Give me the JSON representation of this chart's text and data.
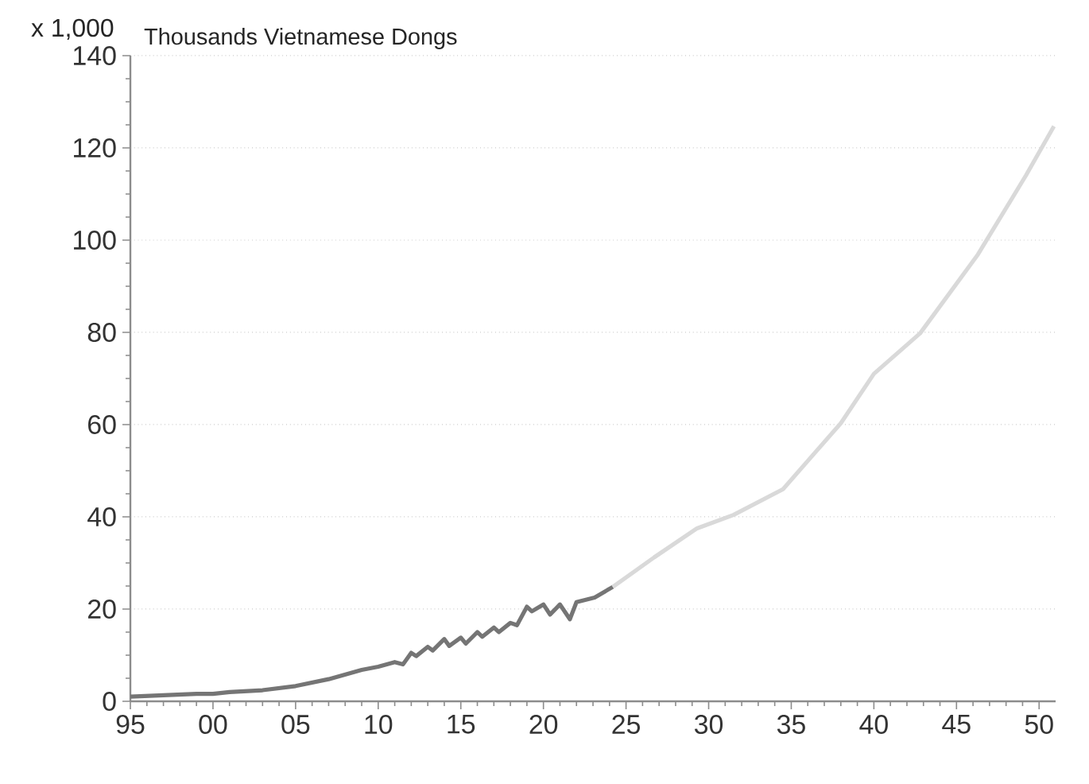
{
  "chart_data": {
    "type": "line",
    "ylabel": "Thousands Vietnamese Dongs",
    "annotations": [
      "x 1,000"
    ],
    "series": [
      {
        "color": "#757575",
        "x": [
          1995,
          1997,
          1999,
          2000,
          2001,
          2003,
          2005,
          2007,
          2009,
          2010,
          2011,
          2011.5,
          2012,
          2012.3,
          2013,
          2013.3,
          2014,
          2014.3,
          2015,
          2015.3,
          2016,
          2016.3,
          2017,
          2017.3,
          2018,
          2018.4,
          2019,
          2019.3,
          2020,
          2020.4,
          2021,
          2021.6,
          2022,
          2023.1,
          2024.2
        ],
        "values": [
          1.0,
          1.3,
          1.6,
          1.6,
          2.0,
          2.4,
          3.3,
          4.8,
          6.8,
          7.5,
          8.5,
          8.0,
          10.5,
          9.8,
          11.8,
          11.0,
          13.5,
          12.0,
          13.8,
          12.5,
          15.0,
          14.0,
          16.0,
          15.0,
          17.0,
          16.5,
          20.5,
          19.5,
          21.0,
          18.8,
          21.0,
          17.8,
          21.5,
          22.5,
          24.8
        ]
      },
      {
        "color": "#d9d9d9",
        "x": [
          2024.2,
          2026.7,
          2029.3,
          2031.5,
          2034.5,
          2038.0,
          2040.0,
          2042.8,
          2046.3,
          2049.2,
          2050.9
        ],
        "values": [
          24.8,
          31.2,
          37.5,
          40.4,
          46.0,
          60.3,
          71.0,
          79.8,
          96.9,
          114.0,
          124.7
        ]
      }
    ],
    "xlim": [
      1995,
      2051
    ],
    "xticks": [
      {
        "value": 1995,
        "label": "95"
      },
      {
        "value": 2000,
        "label": "00"
      },
      {
        "value": 2005,
        "label": "05"
      },
      {
        "value": 2010,
        "label": "10"
      },
      {
        "value": 2015,
        "label": "15"
      },
      {
        "value": 2020,
        "label": "20"
      },
      {
        "value": 2025,
        "label": "25"
      },
      {
        "value": 2030,
        "label": "30"
      },
      {
        "value": 2035,
        "label": "35"
      },
      {
        "value": 2040,
        "label": "40"
      },
      {
        "value": 2045,
        "label": "45"
      },
      {
        "value": 2050,
        "label": "50"
      }
    ],
    "ylim": [
      0,
      140
    ],
    "yticks": [
      0,
      20,
      40,
      60,
      80,
      100,
      120,
      140
    ],
    "grid": "y",
    "marker": "none",
    "line_style": "solid"
  }
}
